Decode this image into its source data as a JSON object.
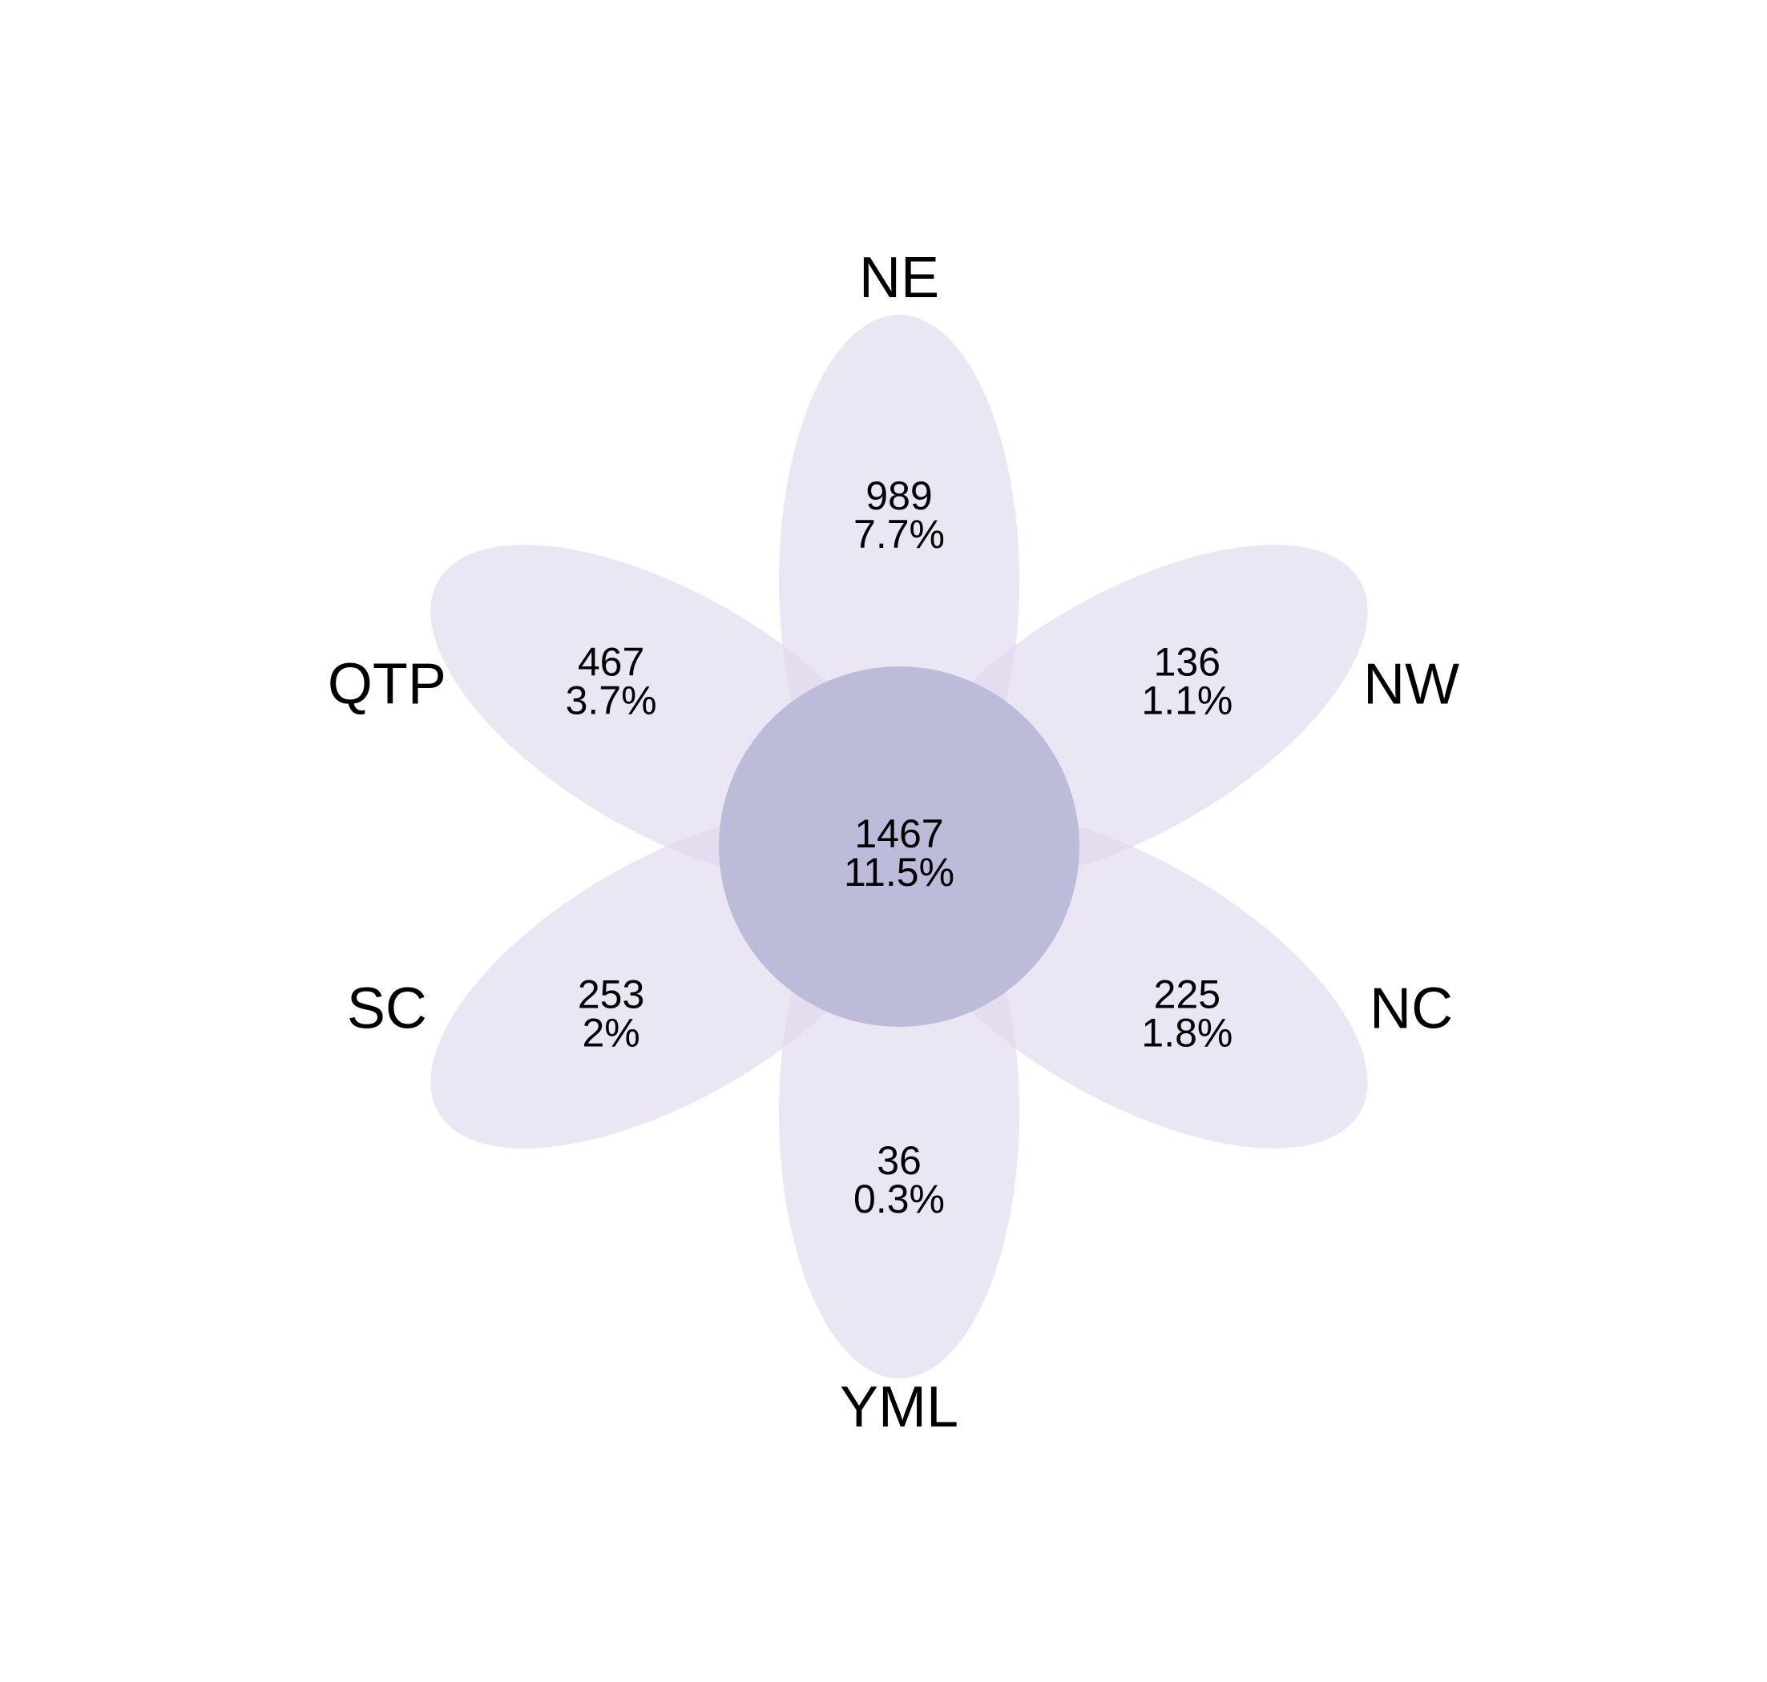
{
  "flower": {
    "petal_color": "#e0d9ec",
    "petal_opacity": 0.65,
    "core_color": "#bdbbda",
    "petals": [
      {
        "set": "NE",
        "count": "989",
        "percent": "7.7%"
      },
      {
        "set": "NW",
        "count": "136",
        "percent": "1.1%"
      },
      {
        "set": "NC",
        "count": "225",
        "percent": "1.8%"
      },
      {
        "set": "YML",
        "count": "36",
        "percent": "0.3%"
      },
      {
        "set": "SC",
        "count": "253",
        "percent": "2%"
      },
      {
        "set": "QTP",
        "count": "467",
        "percent": "3.7%"
      }
    ],
    "core": {
      "count": "1467",
      "percent": "11.5%"
    }
  }
}
